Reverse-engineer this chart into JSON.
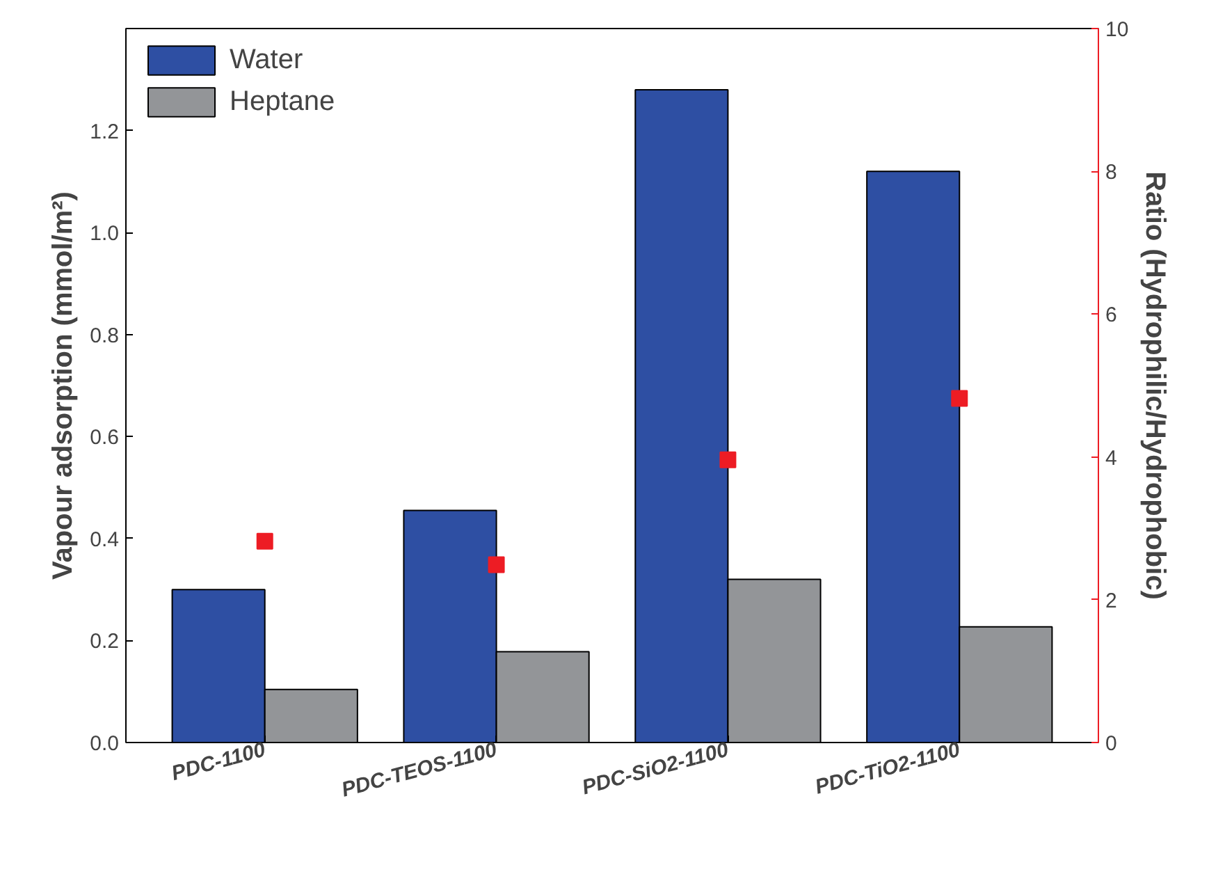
{
  "chart_data": {
    "type": "bar",
    "categories": [
      "PDC-1100",
      "PDC-TEOS-1100",
      "PDC-SiO2-1100",
      "PDC-TiO2-1100"
    ],
    "series": [
      {
        "name": "Water",
        "color": "#2e4fa3",
        "values": [
          0.3,
          0.455,
          1.28,
          1.12
        ]
      },
      {
        "name": "Heptane",
        "color": "#939598",
        "values": [
          0.104,
          0.178,
          0.32,
          0.227
        ]
      },
      {
        "type": "scatter",
        "axis": "y2",
        "color": "#ed1c24",
        "values": [
          2.82,
          2.49,
          3.96,
          4.82
        ]
      }
    ],
    "ylabel": "Vapour adsorption (mmol/m²)",
    "y2label": "Ratio (Hydrophilic/Hydrophobic)",
    "ylim": [
      0,
      1.4
    ],
    "yticks": [
      {
        "value": 0,
        "label": "0.0"
      },
      {
        "value": 0.2,
        "label": "0.2"
      },
      {
        "value": 0.4,
        "label": "0.4"
      },
      {
        "value": 0.6,
        "label": "0.6"
      },
      {
        "value": 0.8,
        "label": "0.8"
      },
      {
        "value": 1.0,
        "label": "1.0"
      },
      {
        "value": 1.2,
        "label": "1.2"
      }
    ],
    "y2lim": [
      0,
      10
    ],
    "y2ticks": [
      0,
      2,
      4,
      6,
      8,
      10
    ],
    "legend": "top left",
    "grid": false,
    "marker": "square"
  }
}
